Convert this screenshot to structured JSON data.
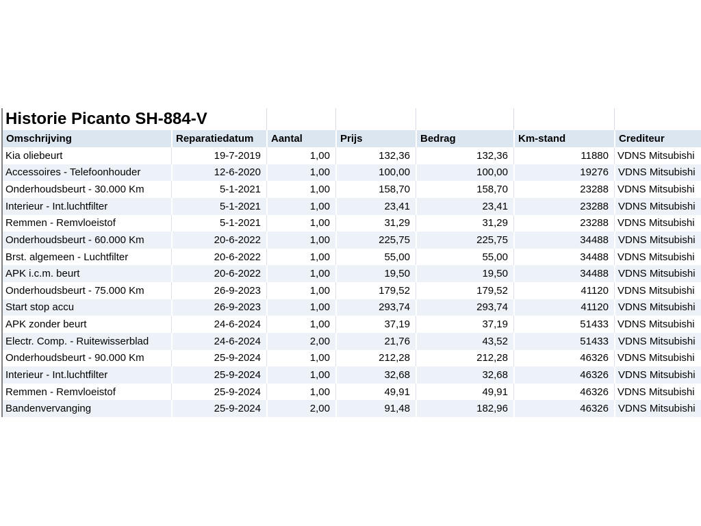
{
  "title": "Historie Picanto SH-884-V",
  "colors": {
    "header_bg": "#dce6f1",
    "band_bg": "#edf1f8",
    "grid_line": "#d6dbe4",
    "cell_line": "#dadfe9",
    "left_border": "#808080",
    "text": "#000000"
  },
  "table": {
    "columns": [
      {
        "label": "Omschrijving",
        "align": "left"
      },
      {
        "label": "Reparatiedatum",
        "align": "right"
      },
      {
        "label": "Aantal",
        "align": "right"
      },
      {
        "label": "Prijs",
        "align": "right"
      },
      {
        "label": "Bedrag",
        "align": "right"
      },
      {
        "label": "Km-stand",
        "align": "right"
      },
      {
        "label": "Crediteur",
        "align": "left"
      }
    ],
    "rows": [
      [
        "Kia oliebeurt",
        "19-7-2019",
        "1,00",
        "132,36",
        "132,36",
        "11880",
        "VDNS Mitsubishi"
      ],
      [
        "Accessoires - Telefoonhouder",
        "12-6-2020",
        "1,00",
        "100,00",
        "100,00",
        "19276",
        "VDNS Mitsubishi"
      ],
      [
        "Onderhoudsbeurt - 30.000 Km",
        "5-1-2021",
        "1,00",
        "158,70",
        "158,70",
        "23288",
        "VDNS Mitsubishi"
      ],
      [
        "Interieur - Int.luchtfilter",
        "5-1-2021",
        "1,00",
        "23,41",
        "23,41",
        "23288",
        "VDNS Mitsubishi"
      ],
      [
        "Remmen - Remvloeistof",
        "5-1-2021",
        "1,00",
        "31,29",
        "31,29",
        "23288",
        "VDNS Mitsubishi"
      ],
      [
        "Onderhoudsbeurt - 60.000 Km",
        "20-6-2022",
        "1,00",
        "225,75",
        "225,75",
        "34488",
        "VDNS Mitsubishi"
      ],
      [
        "Brst. algemeen - Luchtfilter",
        "20-6-2022",
        "1,00",
        "55,00",
        "55,00",
        "34488",
        "VDNS Mitsubishi"
      ],
      [
        "APK i.c.m. beurt",
        "20-6-2022",
        "1,00",
        "19,50",
        "19,50",
        "34488",
        "VDNS Mitsubishi"
      ],
      [
        "Onderhoudsbeurt - 75.000 Km",
        "26-9-2023",
        "1,00",
        "179,52",
        "179,52",
        "41120",
        "VDNS Mitsubishi"
      ],
      [
        "Start stop accu",
        "26-9-2023",
        "1,00",
        "293,74",
        "293,74",
        "41120",
        "VDNS Mitsubishi"
      ],
      [
        "APK zonder beurt",
        "24-6-2024",
        "1,00",
        "37,19",
        "37,19",
        "51433",
        "VDNS Mitsubishi"
      ],
      [
        "Electr. Comp. - Ruitewisserblad",
        "24-6-2024",
        "2,00",
        "21,76",
        "43,52",
        "51433",
        "VDNS Mitsubishi"
      ],
      [
        "Onderhoudsbeurt - 90.000 Km",
        "25-9-2024",
        "1,00",
        "212,28",
        "212,28",
        "46326",
        "VDNS Mitsubishi"
      ],
      [
        "Interieur - Int.luchtfilter",
        "25-9-2024",
        "1,00",
        "32,68",
        "32,68",
        "46326",
        "VDNS Mitsubishi"
      ],
      [
        "Remmen - Remvloeistof",
        "25-9-2024",
        "1,00",
        "49,91",
        "49,91",
        "46326",
        "VDNS Mitsubishi"
      ],
      [
        "Bandenvervanging",
        "25-9-2024",
        "2,00",
        "91,48",
        "182,96",
        "46326",
        "VDNS Mitsubishi"
      ]
    ]
  }
}
